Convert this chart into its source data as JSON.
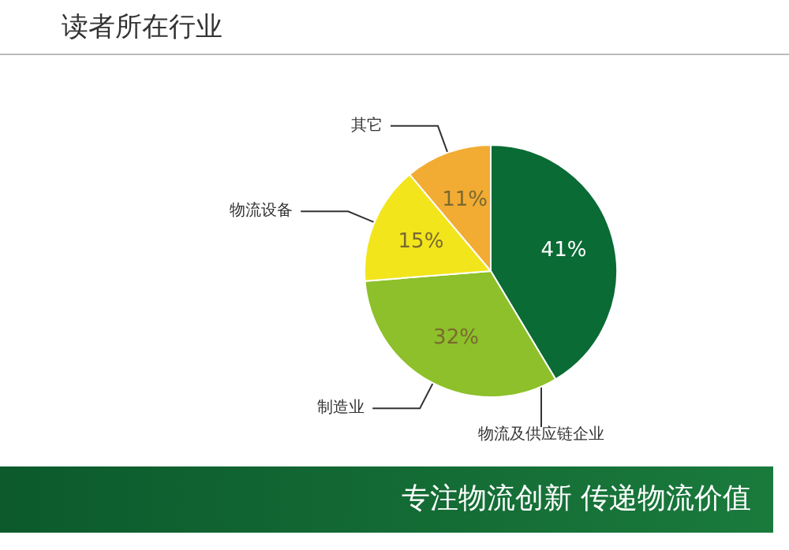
{
  "chart_data": {
    "type": "pie",
    "title": "读者所在行业",
    "categories": [
      "物流及供应链企业",
      "制造业",
      "物流设备",
      "其它"
    ],
    "values": [
      41,
      32,
      15,
      11
    ],
    "colors": [
      "#0a6b35",
      "#8dc02a",
      "#f2e51c",
      "#f2ac33"
    ],
    "value_labels": [
      "41%",
      "32%",
      "15%",
      "11%"
    ],
    "legend": false,
    "annotations": [
      "专注物流创新  传递物流价值"
    ]
  }
}
